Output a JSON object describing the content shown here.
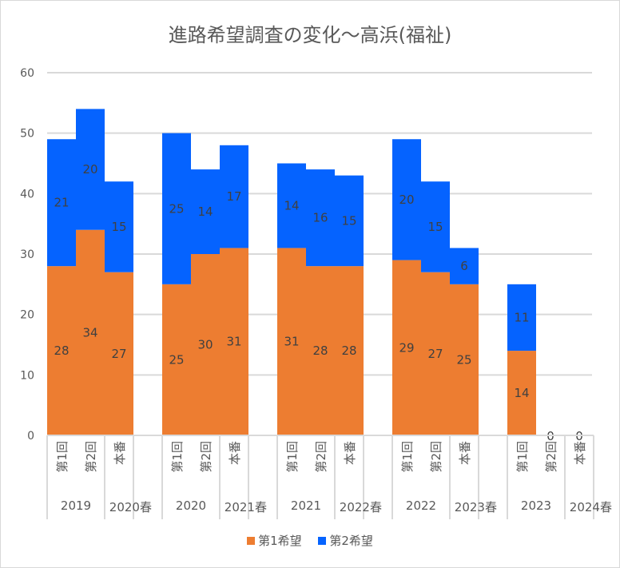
{
  "chart_data": {
    "type": "bar",
    "stacked": true,
    "title": "進路希望調査の変化～高浜(福祉)",
    "xlabel": "",
    "ylabel": "",
    "ylim": [
      0,
      60
    ],
    "yticks": [
      "0",
      "10",
      "20",
      "30",
      "40",
      "50",
      "60"
    ],
    "grid": true,
    "legend_position": "bottom",
    "groups": [
      {
        "year": "2019",
        "season": "2020春",
        "categories": [
          "第1回",
          "第2回",
          "本番"
        ]
      },
      {
        "year": "2020",
        "season": "2021春",
        "categories": [
          "第1回",
          "第2回",
          "本番"
        ]
      },
      {
        "year": "2021",
        "season": "2022春",
        "categories": [
          "第1回",
          "第2回",
          "本番"
        ]
      },
      {
        "year": "2022",
        "season": "2023春",
        "categories": [
          "第1回",
          "第2回",
          "本番"
        ]
      },
      {
        "year": "2023",
        "season": "2024春",
        "categories": [
          "第1回",
          "第2回",
          "本番"
        ]
      }
    ],
    "series": [
      {
        "name": "第1希望",
        "color": "#ED7D31",
        "values": [
          [
            28,
            34,
            27
          ],
          [
            25,
            30,
            31
          ],
          [
            31,
            28,
            28
          ],
          [
            29,
            27,
            25
          ],
          [
            14,
            0,
            0
          ]
        ],
        "labels": [
          [
            "28",
            "34",
            "27"
          ],
          [
            "25",
            "30",
            "31"
          ],
          [
            "31",
            "28",
            "28"
          ],
          [
            "29",
            "27",
            "25"
          ],
          [
            "14",
            "",
            ""
          ]
        ]
      },
      {
        "name": "第2希望",
        "color": "#0563FF",
        "values": [
          [
            21,
            20,
            15
          ],
          [
            25,
            14,
            17
          ],
          [
            14,
            16,
            15
          ],
          [
            20,
            15,
            6
          ],
          [
            11,
            0,
            0
          ]
        ],
        "labels": [
          [
            "21",
            "20",
            "15"
          ],
          [
            "25",
            "14",
            "17"
          ],
          [
            "14",
            "16",
            "15"
          ],
          [
            "20",
            "15",
            "6"
          ],
          [
            "11",
            "0",
            "0"
          ]
        ]
      }
    ]
  }
}
